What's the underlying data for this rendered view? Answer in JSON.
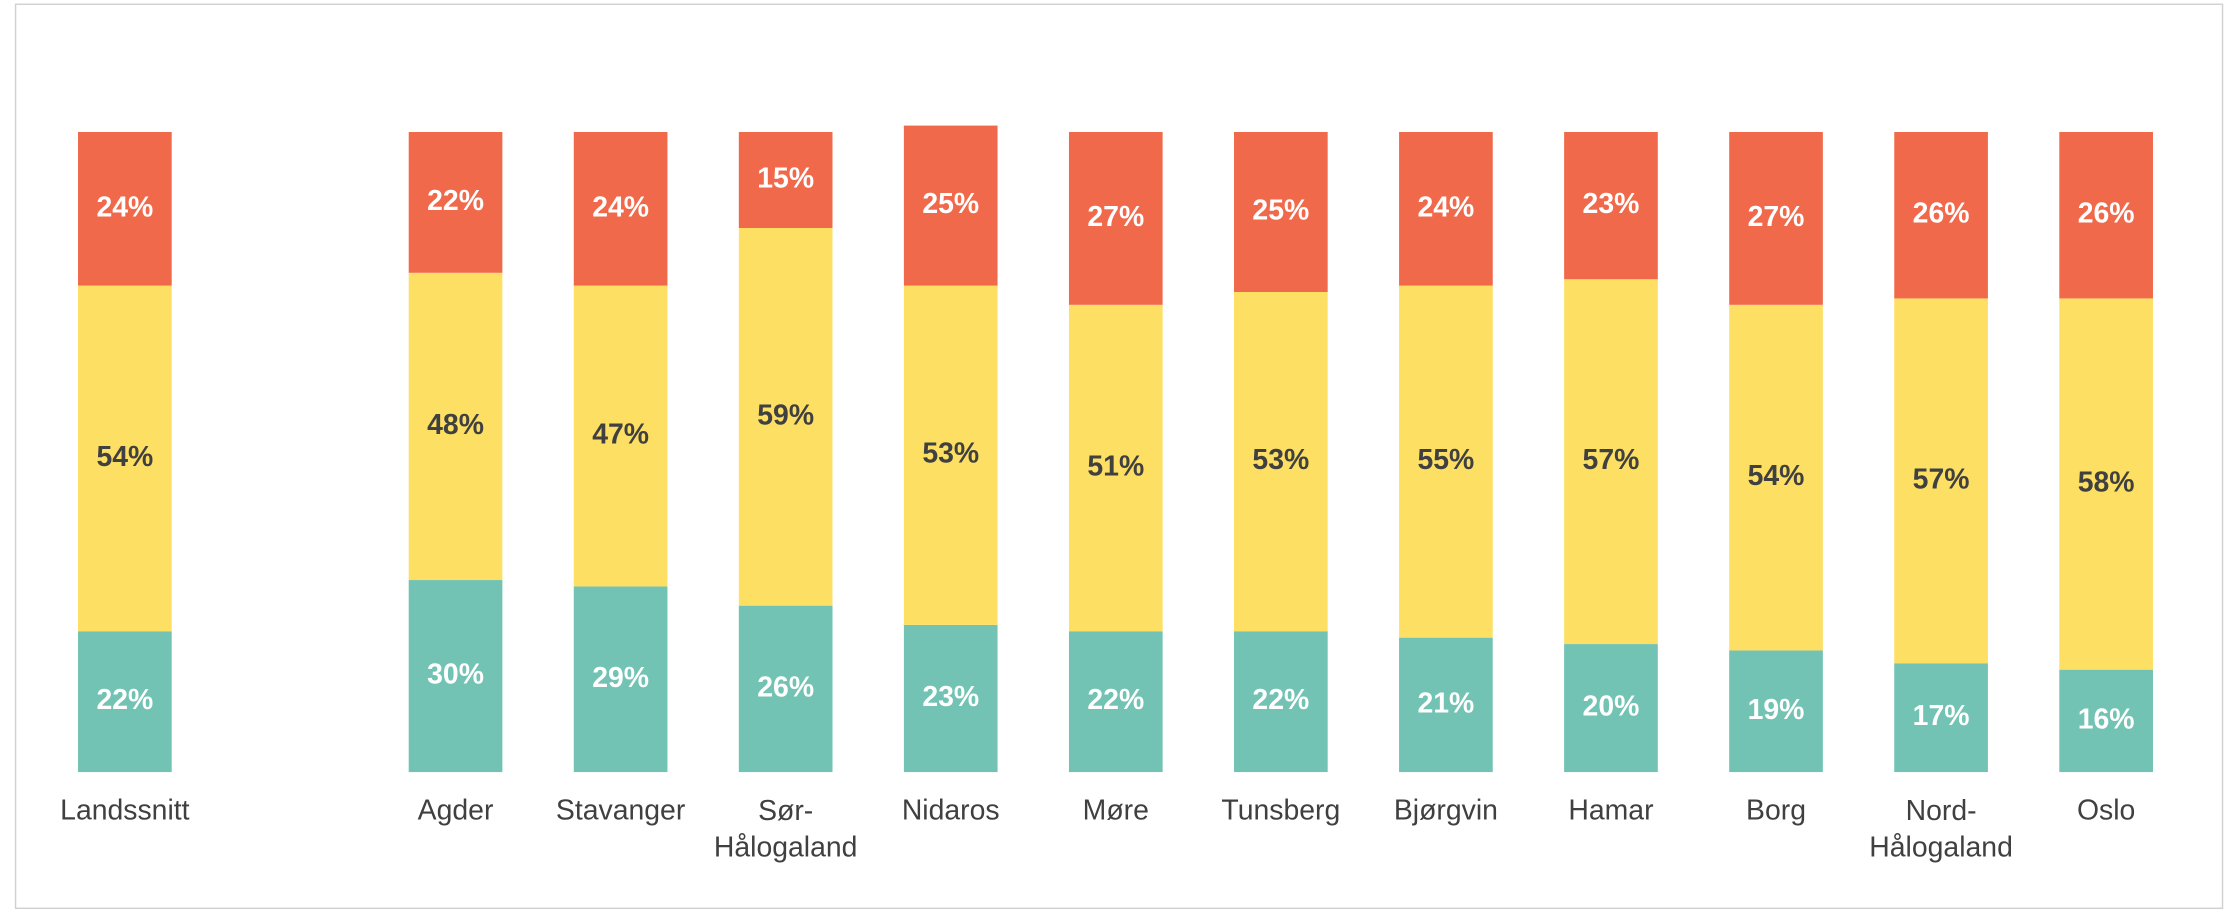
{
  "chart_data": {
    "type": "bar",
    "stacked": true,
    "categories": [
      "Landssnitt",
      "Agder",
      "Stavanger",
      "Sør-Hålogaland",
      "Nidaros",
      "Møre",
      "Tunsberg",
      "Bjørgvin",
      "Hamar",
      "Borg",
      "Nord-Hålogaland",
      "Oslo"
    ],
    "series": [
      {
        "color": "#72c3b3",
        "label_color": "#ffffff",
        "values": [
          22,
          30,
          29,
          26,
          23,
          22,
          22,
          21,
          20,
          19,
          17,
          16
        ],
        "value_labels": [
          "22%",
          "30%",
          "29%",
          "26%",
          "23%",
          "22%",
          "22%",
          "21%",
          "20%",
          "19%",
          "17%",
          "16%"
        ]
      },
      {
        "color": "#fde063",
        "label_color": "#404040",
        "values": [
          54,
          48,
          47,
          59,
          53,
          51,
          53,
          55,
          57,
          54,
          57,
          58
        ],
        "value_labels": [
          "54%",
          "48%",
          "47%",
          "59%",
          "53%",
          "51%",
          "53%",
          "55%",
          "57%",
          "54%",
          "57%",
          "58%"
        ]
      },
      {
        "color": "#f1694b",
        "label_color": "#ffffff",
        "values": [
          24,
          22,
          24,
          15,
          25,
          27,
          25,
          24,
          23,
          27,
          26,
          26
        ],
        "value_labels": [
          "24%",
          "22%",
          "24%",
          "15%",
          "25%",
          "27%",
          "25%",
          "24%",
          "23%",
          "27%",
          "26%",
          "26%"
        ]
      }
    ]
  }
}
